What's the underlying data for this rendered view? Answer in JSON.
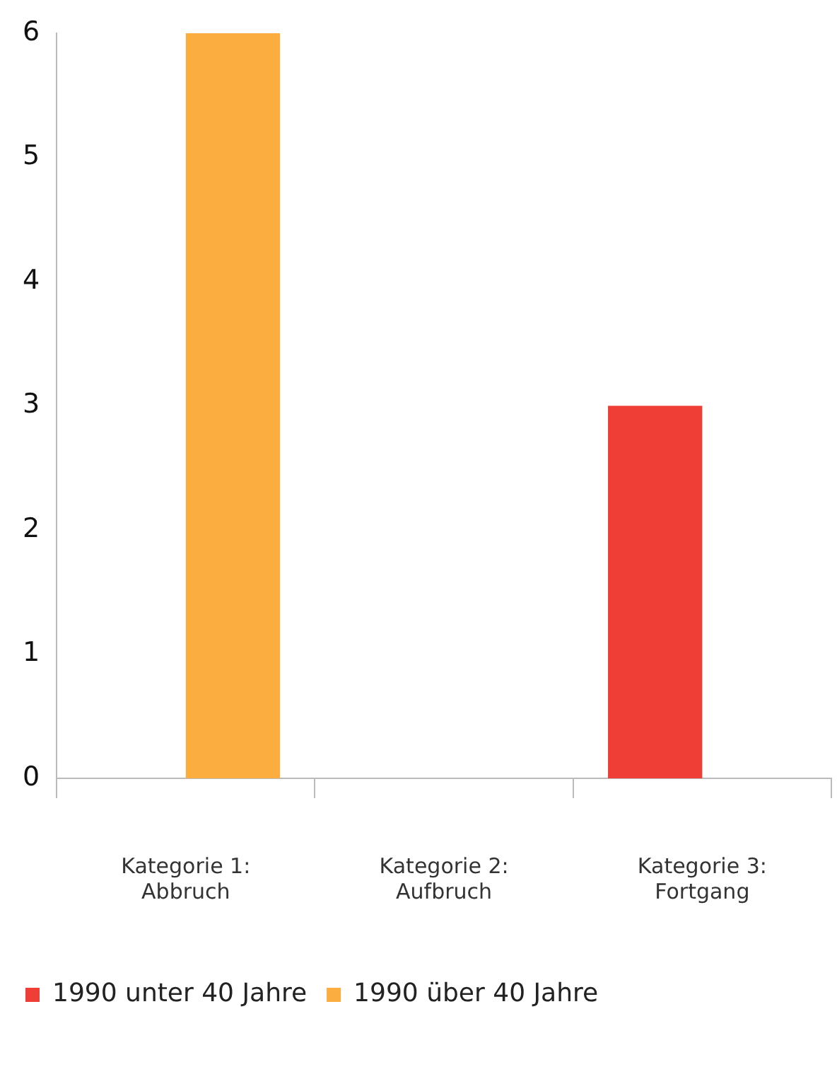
{
  "chart_data": {
    "type": "bar",
    "categories": [
      "Kategorie 1: Abbruch",
      "Kategorie 2: Aufbruch",
      "Kategorie 3: Fortgang"
    ],
    "series": [
      {
        "name": "1990 unter 40 Jahre",
        "color": "#ef3e36",
        "values": [
          0,
          0,
          3
        ]
      },
      {
        "name": "1990 über 40 Jahre",
        "color": "#fbae3f",
        "values": [
          6,
          0,
          0
        ]
      }
    ],
    "ylim": [
      0,
      6
    ],
    "yticks": [
      0,
      1,
      2,
      3,
      4,
      5,
      6
    ],
    "grid": false,
    "legend": "bottom left"
  }
}
